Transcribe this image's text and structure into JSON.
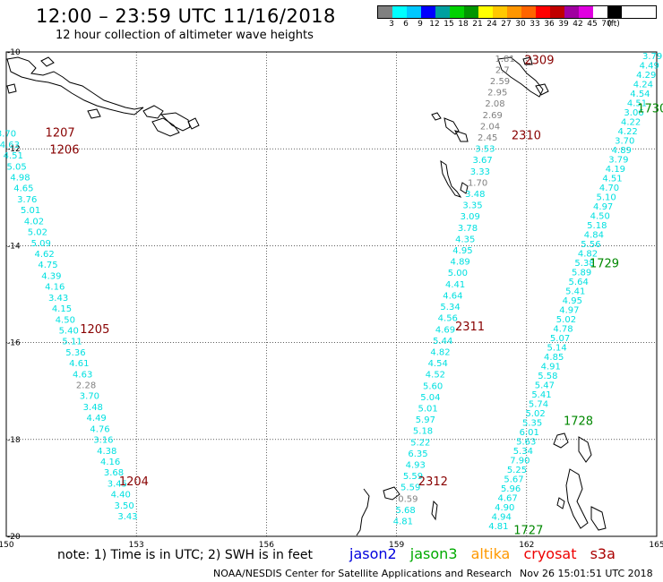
{
  "title": "12:00 – 23:59 UTC 11/16/2018",
  "subtitle": "12 hour collection of altimeter wave heights",
  "colorbar": {
    "labels": [
      "3",
      "6",
      "9",
      "12",
      "15",
      "18",
      "21",
      "24",
      "27",
      "30",
      "33",
      "36",
      "39",
      "42",
      "45",
      "70",
      "(ft)"
    ],
    "colors": [
      "#808080",
      "#00ffff",
      "#00c8ff",
      "#0000ff",
      "#00a0a0",
      "#00d200",
      "#009600",
      "#ffff00",
      "#ffc800",
      "#ff9600",
      "#ff6400",
      "#ff0000",
      "#c00000",
      "#a000a0",
      "#e000e0",
      "#ffffff",
      "#000000"
    ]
  },
  "axes": {
    "lon_ticks": [
      150,
      153,
      156,
      159,
      162,
      165
    ],
    "lat_ticks": [
      -10,
      -12,
      -14,
      -16,
      -18,
      -20
    ],
    "lon_labels": [
      "150",
      "153",
      "156",
      "159",
      "162",
      "165"
    ],
    "lat_labels": [
      "-10",
      "-12",
      "-14",
      "-16",
      "-18",
      "-20"
    ]
  },
  "note": "note: 1) Time is in UTC; 2) SWH is in feet",
  "legend": [
    {
      "label": "jason2",
      "color": "#0000dd"
    },
    {
      "label": "jason3",
      "color": "#00aa00"
    },
    {
      "label": "altika",
      "color": "#ff9900"
    },
    {
      "label": "cryosat",
      "color": "#ee0000"
    },
    {
      "label": "s3a",
      "color": "#aa0000"
    }
  ],
  "footer_left": "NOAA/NESDIS Center for Satellite Applications and Research",
  "footer_right": "Nov 26 15:01:51 UTC 2018",
  "chart_data": {
    "type": "scatter",
    "x_range": [
      150,
      165
    ],
    "y_range": [
      -20,
      -10
    ],
    "series": [
      {
        "name": "s3a",
        "color_time": "#880000",
        "times": [
          {
            "text": "1207",
            "lon": 150.9,
            "lat": -11.75
          },
          {
            "text": "1206",
            "lon": 151.0,
            "lat": -12.1
          },
          {
            "text": "1205",
            "lon": 151.7,
            "lat": -15.8
          },
          {
            "text": "1204",
            "lon": 152.6,
            "lat": -18.95
          }
        ],
        "tracks": [
          {
            "start": [
              150.0,
              -11.75
            ],
            "end": [
              152.8,
              -19.65
            ],
            "values": [
              "3.70",
              "4.63",
              "4.51",
              "5.05",
              "4.98",
              "4.65",
              "3.76",
              "5.01",
              "4.02",
              "5.02",
              "5.09",
              "4.62",
              "4.75",
              "4.39",
              "4.16",
              "3.43",
              "4.15",
              "4.50",
              "5.40",
              "5.11",
              "5.36",
              "4.61",
              "4.63",
              "2.28",
              "3.70",
              "3.48",
              "4.49",
              "4.76",
              "3.16",
              "4.38",
              "4.16",
              "3.68",
              "3.45",
              "4.40",
              "3.50",
              "3.43"
            ]
          }
        ]
      },
      {
        "name": "s3a",
        "color_time": "#880000",
        "times": [
          {
            "text": "2309",
            "lon": 161.95,
            "lat": -10.25
          },
          {
            "text": "2310",
            "lon": 161.65,
            "lat": -11.8
          },
          {
            "text": "2311",
            "lon": 160.35,
            "lat": -15.75
          },
          {
            "text": "2312",
            "lon": 159.5,
            "lat": -18.95
          }
        ],
        "tracks": [
          {
            "start": [
              161.5,
              -10.2
            ],
            "end": [
              159.15,
              -19.75
            ],
            "values": [
              "1.81",
              "2.7",
              "2.59",
              "2.95",
              "2.08",
              "2.69",
              "2.04",
              "2.45",
              "3.53",
              "3.67",
              "3.33",
              "1.70",
              "3.48",
              "3.35",
              "3.09",
              "3.78",
              "4.35",
              "4.95",
              "4.89",
              "5.00",
              "4.41",
              "4.64",
              "5.34",
              "4.56",
              "4.69",
              "5.44",
              "4.82",
              "4.54",
              "4.52",
              "5.60",
              "5.04",
              "5.01",
              "5.97",
              "5.18",
              "5.22",
              "6.35",
              "4.93",
              "5.59",
              "5.59",
              "0.59",
              "5.68",
              "4.81"
            ]
          }
        ]
      },
      {
        "name": "jason3",
        "color_time": "#008800",
        "times": [
          {
            "text": "1730",
            "lon": 164.55,
            "lat": -11.25
          },
          {
            "text": "1729",
            "lon": 163.45,
            "lat": -14.45
          },
          {
            "text": "1728",
            "lon": 162.85,
            "lat": -17.7
          },
          {
            "text": "1727",
            "lon": 161.7,
            "lat": -19.95
          }
        ],
        "tracks": [
          {
            "start": [
              164.9,
              -10.15
            ],
            "end": [
              161.35,
              -19.85
            ],
            "values": [
              "3.79",
              "4.49",
              "4.29",
              "4.24",
              "4.54",
              "4.51",
              "3.06",
              "4.22",
              "4.22",
              "3.70",
              "4.89",
              "3.79",
              "4.19",
              "4.51",
              "4.70",
              "5.10",
              "4.97",
              "4.50",
              "5.18",
              "4.84",
              "5.56",
              "4.82",
              "5.38",
              "5.89",
              "5.64",
              "5.41",
              "4.95",
              "4.97",
              "5.02",
              "4.78",
              "5.07",
              "5.14",
              "4.85",
              "4.91",
              "5.58",
              "5.47",
              "5.41",
              "5.74",
              "5.02",
              "5.35",
              "6.01",
              "5.63",
              "5.34",
              "7.90",
              "5.25",
              "5.67",
              "5.96",
              "4.67",
              "4.90",
              "4.94",
              "4.81"
            ]
          }
        ]
      }
    ]
  }
}
